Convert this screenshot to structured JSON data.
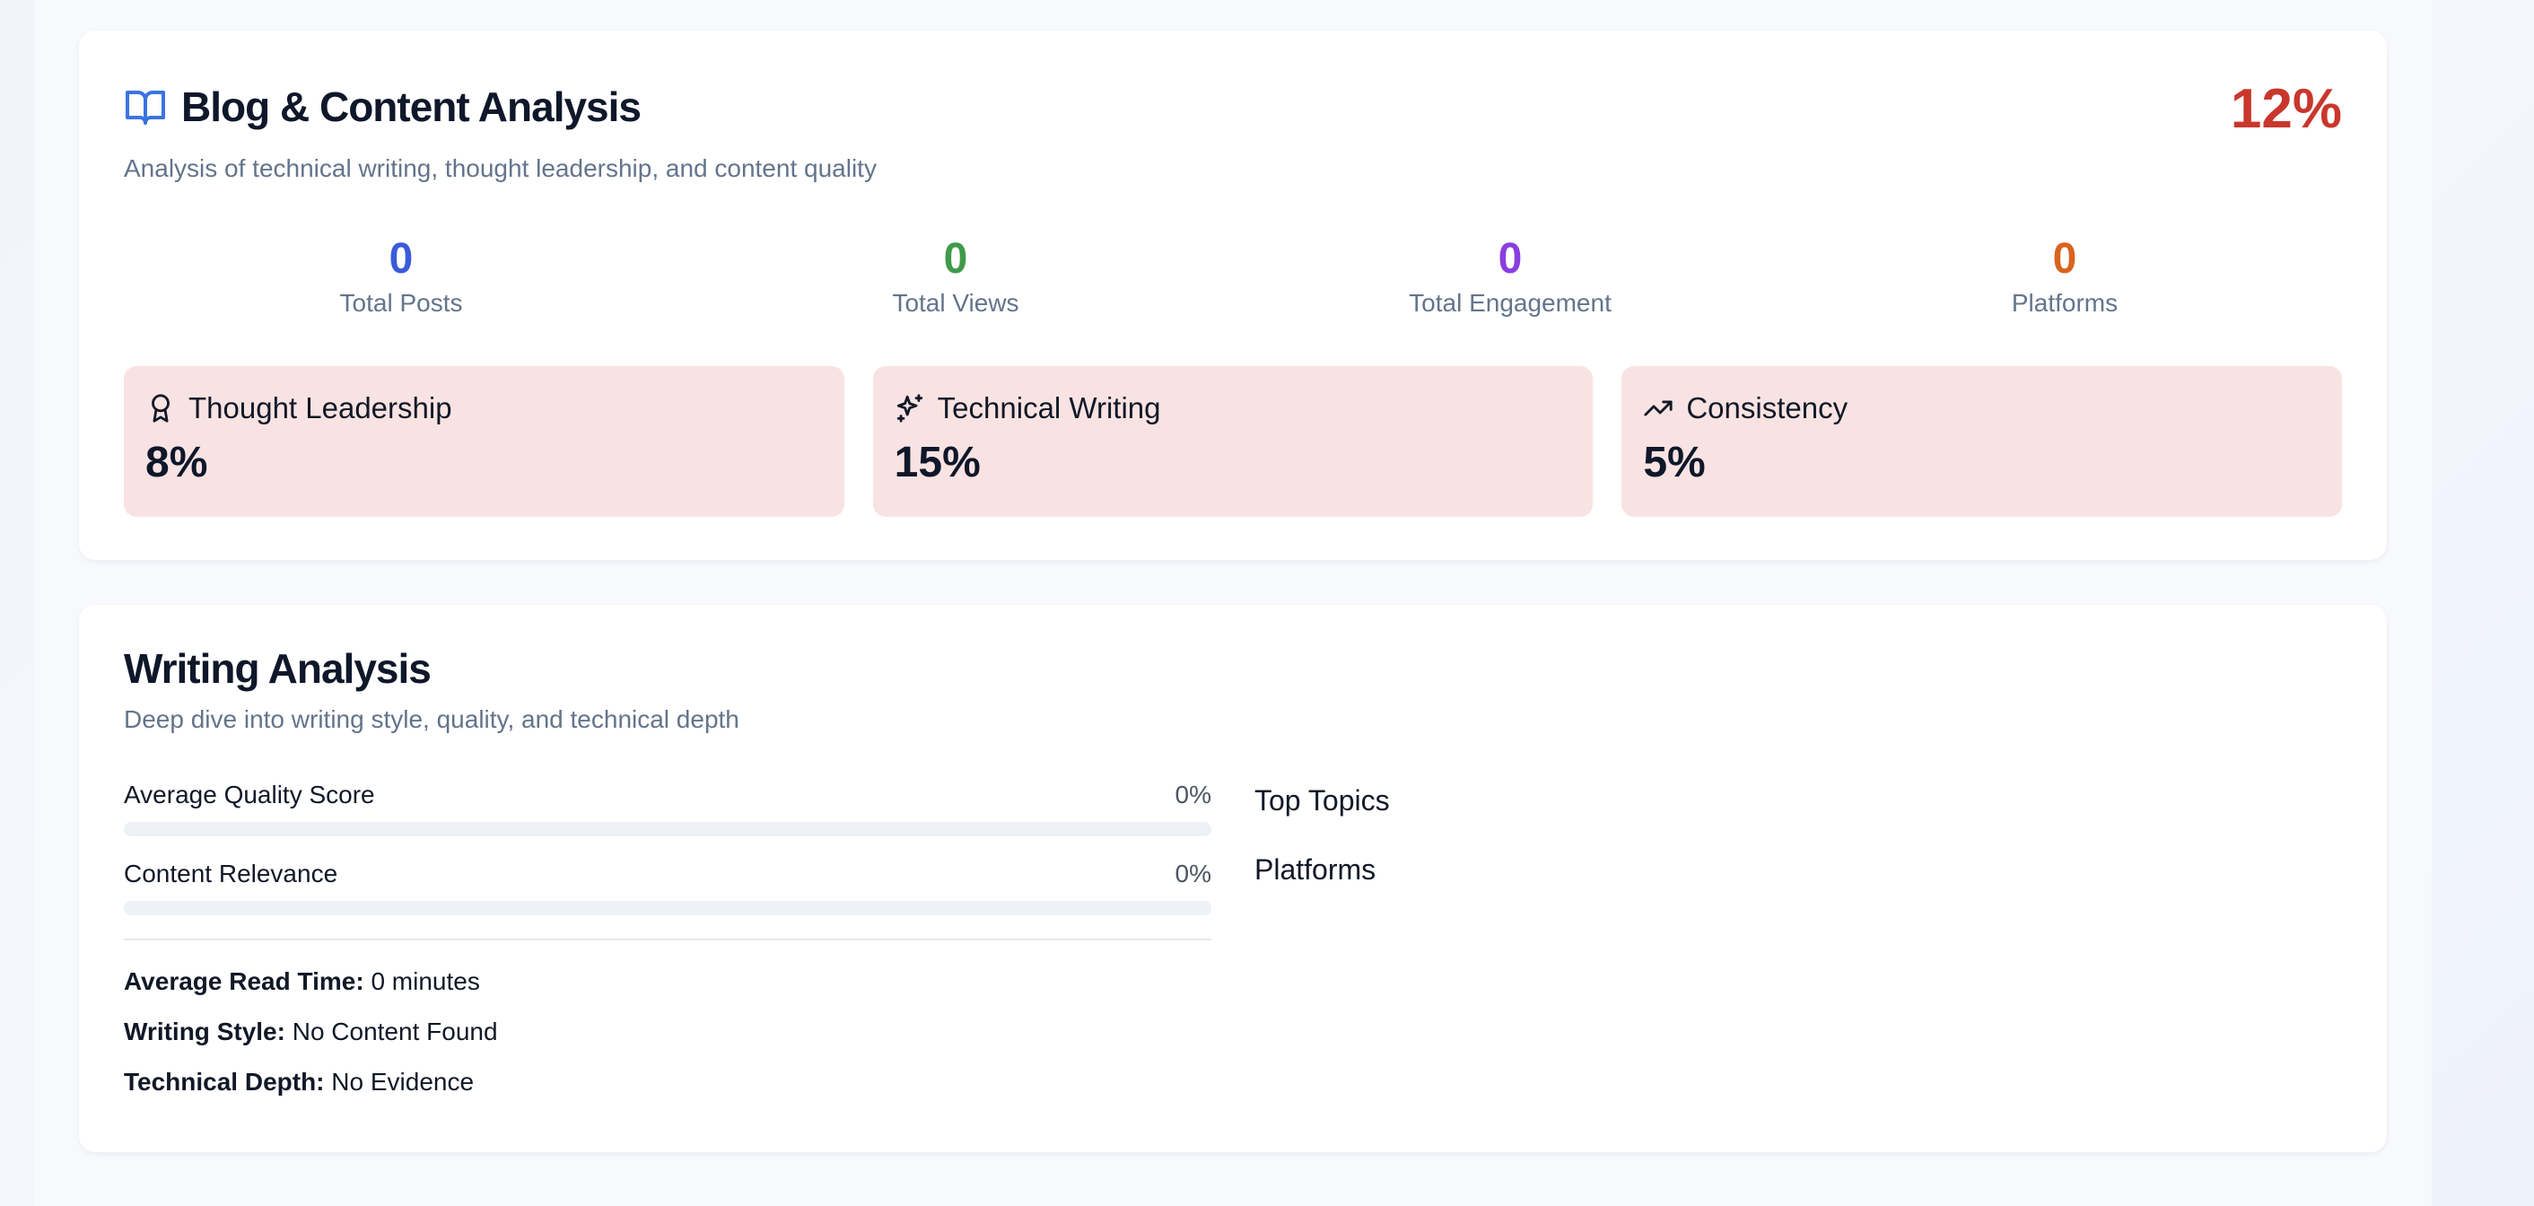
{
  "blog": {
    "title": "Blog & Content Analysis",
    "subtitle": "Analysis of technical writing, thought leadership, and content quality",
    "score": "12%",
    "stats": [
      {
        "value": "0",
        "label": "Total Posts",
        "color": "#3b5bdb"
      },
      {
        "value": "0",
        "label": "Total Views",
        "color": "#3f9a4a"
      },
      {
        "value": "0",
        "label": "Total Engagement",
        "color": "#8a3ee0"
      },
      {
        "value": "0",
        "label": "Platforms",
        "color": "#d9631f"
      }
    ],
    "metrics": [
      {
        "label": "Thought Leadership",
        "value": "8%",
        "icon": "award-icon"
      },
      {
        "label": "Technical Writing",
        "value": "15%",
        "icon": "sparkles-icon"
      },
      {
        "label": "Consistency",
        "value": "5%",
        "icon": "trending-up-icon"
      }
    ]
  },
  "writing": {
    "title": "Writing Analysis",
    "subtitle": "Deep dive into writing style, quality, and technical depth",
    "bars": [
      {
        "label": "Average Quality Score",
        "value": "0%",
        "fraction": 0
      },
      {
        "label": "Content Relevance",
        "value": "0%",
        "fraction": 0
      }
    ],
    "details": [
      {
        "key": "Average Read Time:",
        "value": "0 minutes"
      },
      {
        "key": "Writing Style:",
        "value": "No Content Found"
      },
      {
        "key": "Technical Depth:",
        "value": "No Evidence"
      }
    ],
    "top_topics_label": "Top Topics",
    "platforms_label": "Platforms"
  },
  "colors": {
    "score_red": "#c9372c",
    "metric_bg": "#f9e3e2",
    "icon_blue": "#3b74e0"
  }
}
